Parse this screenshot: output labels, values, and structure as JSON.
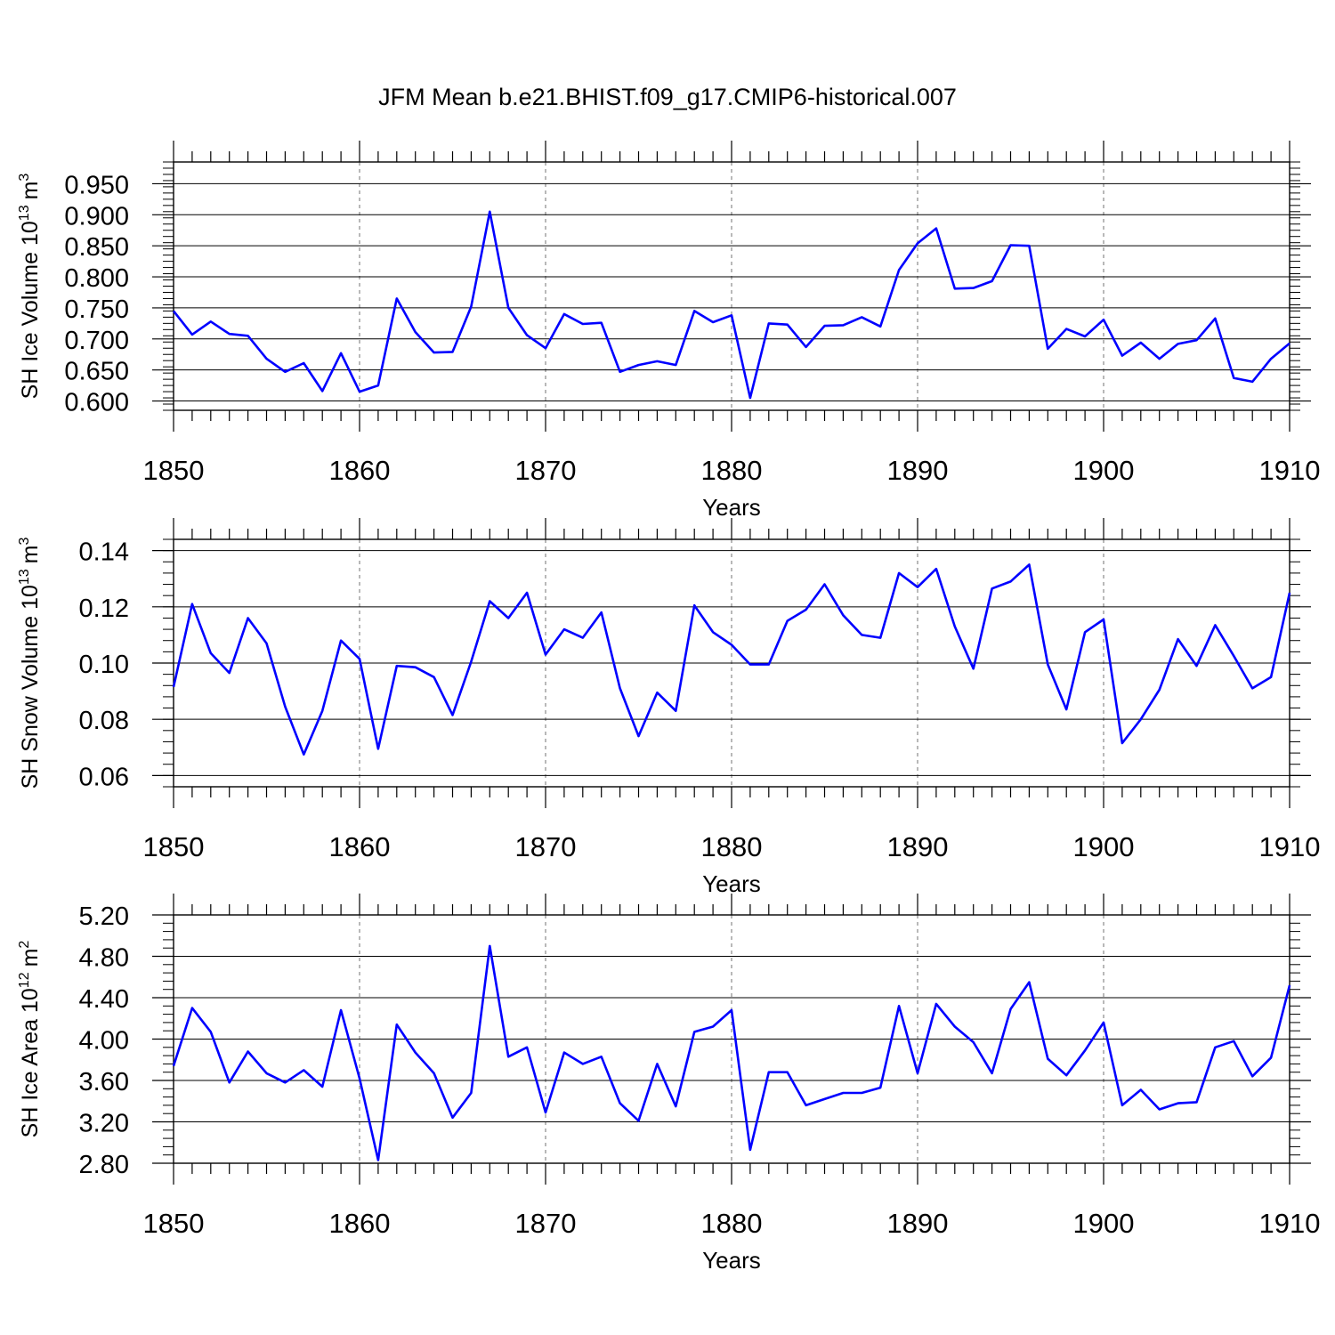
{
  "title": "JFM Mean b.e21.BHIST.f09_g17.CMIP6-historical.007",
  "chart_data": [
    {
      "type": "line",
      "series": [
        {
          "name": "SH Ice Volume",
          "color": "#0000ff",
          "x": [
            1850,
            1851,
            1852,
            1853,
            1854,
            1855,
            1856,
            1857,
            1858,
            1859,
            1860,
            1861,
            1862,
            1863,
            1864,
            1865,
            1866,
            1867,
            1868,
            1869,
            1870,
            1871,
            1872,
            1873,
            1874,
            1875,
            1876,
            1877,
            1878,
            1879,
            1880,
            1881,
            1882,
            1883,
            1884,
            1885,
            1886,
            1887,
            1888,
            1889,
            1890,
            1891,
            1892,
            1893,
            1894,
            1895,
            1896,
            1897,
            1898,
            1899,
            1900,
            1901,
            1902,
            1903,
            1904,
            1905,
            1906,
            1907,
            1908,
            1909,
            1910
          ],
          "values": [
            0.745,
            0.707,
            0.728,
            0.708,
            0.705,
            0.668,
            0.647,
            0.661,
            0.616,
            0.677,
            0.615,
            0.625,
            0.765,
            0.711,
            0.678,
            0.679,
            0.752,
            0.905,
            0.75,
            0.706,
            0.685,
            0.74,
            0.724,
            0.726,
            0.647,
            0.658,
            0.664,
            0.658,
            0.745,
            0.727,
            0.738,
            0.605,
            0.725,
            0.723,
            0.687,
            0.721,
            0.722,
            0.735,
            0.72,
            0.811,
            0.854,
            0.878,
            0.781,
            0.782,
            0.793,
            0.851,
            0.85,
            0.684,
            0.716,
            0.704,
            0.731,
            0.673,
            0.694,
            0.668,
            0.692,
            0.698,
            0.733,
            0.637,
            0.631,
            0.668,
            0.693
          ]
        }
      ],
      "xlabel": "Years",
      "ylabel": "SH Ice Volume 10",
      "ylabel_exponent": "13",
      "ylabel_unit": "m",
      "ylabel_unit_exponent": "3",
      "xlim": [
        1850,
        1910
      ],
      "ylim": [
        0.585,
        0.985
      ],
      "xticks": [
        1850,
        1860,
        1870,
        1880,
        1890,
        1900,
        1910
      ],
      "yticks": [
        0.6,
        0.65,
        0.7,
        0.75,
        0.8,
        0.85,
        0.9,
        0.95
      ],
      "ytick_labels": [
        "0.600",
        "0.650",
        "0.700",
        "0.750",
        "0.800",
        "0.850",
        "0.900",
        "0.950"
      ],
      "grid": "vertical dashed at decades"
    },
    {
      "type": "line",
      "series": [
        {
          "name": "SH Snow Volume",
          "color": "#0000ff",
          "x": [
            1850,
            1851,
            1852,
            1853,
            1854,
            1855,
            1856,
            1857,
            1858,
            1859,
            1860,
            1861,
            1862,
            1863,
            1864,
            1865,
            1866,
            1867,
            1868,
            1869,
            1870,
            1871,
            1872,
            1873,
            1874,
            1875,
            1876,
            1877,
            1878,
            1879,
            1880,
            1881,
            1882,
            1883,
            1884,
            1885,
            1886,
            1887,
            1888,
            1889,
            1890,
            1891,
            1892,
            1893,
            1894,
            1895,
            1896,
            1897,
            1898,
            1899,
            1900,
            1901,
            1902,
            1903,
            1904,
            1905,
            1906,
            1907,
            1908,
            1909,
            1910
          ],
          "values": [
            0.0915,
            0.121,
            0.1035,
            0.0965,
            0.116,
            0.107,
            0.0845,
            0.0675,
            0.083,
            0.108,
            0.1015,
            0.0695,
            0.099,
            0.0985,
            0.095,
            0.0815,
            0.1005,
            0.122,
            0.116,
            0.125,
            0.103,
            0.112,
            0.109,
            0.118,
            0.091,
            0.074,
            0.0895,
            0.083,
            0.1205,
            0.111,
            0.1065,
            0.0995,
            0.0995,
            0.115,
            0.119,
            0.128,
            0.117,
            0.11,
            0.109,
            0.132,
            0.127,
            0.1335,
            0.113,
            0.098,
            0.1265,
            0.129,
            0.135,
            0.0995,
            0.0835,
            0.111,
            0.1155,
            0.0715,
            0.08,
            0.0905,
            0.1085,
            0.099,
            0.1135,
            0.1025,
            0.091,
            0.095,
            0.125
          ]
        }
      ],
      "xlabel": "Years",
      "ylabel": "SH Snow Volume 10",
      "ylabel_exponent": "13",
      "ylabel_unit": "m",
      "ylabel_unit_exponent": "3",
      "xlim": [
        1850,
        1910
      ],
      "ylim": [
        0.056,
        0.144
      ],
      "xticks": [
        1850,
        1860,
        1870,
        1880,
        1890,
        1900,
        1910
      ],
      "yticks": [
        0.06,
        0.08,
        0.1,
        0.12,
        0.14
      ],
      "ytick_labels": [
        "0.06",
        "0.08",
        "0.10",
        "0.12",
        "0.14"
      ],
      "grid": "vertical dashed at decades"
    },
    {
      "type": "line",
      "series": [
        {
          "name": "SH Ice Area",
          "color": "#0000ff",
          "x": [
            1850,
            1851,
            1852,
            1853,
            1854,
            1855,
            1856,
            1857,
            1858,
            1859,
            1860,
            1861,
            1862,
            1863,
            1864,
            1865,
            1866,
            1867,
            1868,
            1869,
            1870,
            1871,
            1872,
            1873,
            1874,
            1875,
            1876,
            1877,
            1878,
            1879,
            1880,
            1881,
            1882,
            1883,
            1884,
            1885,
            1886,
            1887,
            1888,
            1889,
            1890,
            1891,
            1892,
            1893,
            1894,
            1895,
            1896,
            1897,
            1898,
            1899,
            1900,
            1901,
            1902,
            1903,
            1904,
            1905,
            1906,
            1907,
            1908,
            1909,
            1910
          ],
          "values": [
            3.74,
            4.3,
            4.07,
            3.58,
            3.88,
            3.67,
            3.58,
            3.7,
            3.54,
            4.28,
            3.62,
            2.83,
            4.14,
            3.87,
            3.67,
            3.24,
            3.48,
            4.9,
            3.83,
            3.92,
            3.29,
            3.87,
            3.76,
            3.83,
            3.38,
            3.21,
            3.76,
            3.35,
            4.07,
            4.12,
            4.28,
            2.93,
            3.68,
            3.68,
            3.36,
            3.42,
            3.48,
            3.48,
            3.53,
            4.32,
            3.67,
            4.34,
            4.12,
            3.97,
            3.67,
            4.29,
            4.55,
            3.81,
            3.65,
            3.89,
            4.16,
            3.36,
            3.51,
            3.32,
            3.38,
            3.39,
            3.92,
            3.98,
            3.64,
            3.82,
            4.52
          ]
        }
      ],
      "xlabel": "Years",
      "ylabel": "SH Ice Area 10",
      "ylabel_exponent": "12",
      "ylabel_unit": "m",
      "ylabel_unit_exponent": "2",
      "xlim": [
        1850,
        1910
      ],
      "ylim": [
        2.8,
        5.2
      ],
      "xticks": [
        1850,
        1860,
        1870,
        1880,
        1890,
        1900,
        1910
      ],
      "yticks": [
        2.8,
        3.2,
        3.6,
        4.0,
        4.4,
        4.8,
        5.2
      ],
      "ytick_labels": [
        "2.80",
        "3.20",
        "3.60",
        "4.00",
        "4.40",
        "4.80",
        "5.20"
      ],
      "grid": "vertical dashed at decades"
    }
  ]
}
